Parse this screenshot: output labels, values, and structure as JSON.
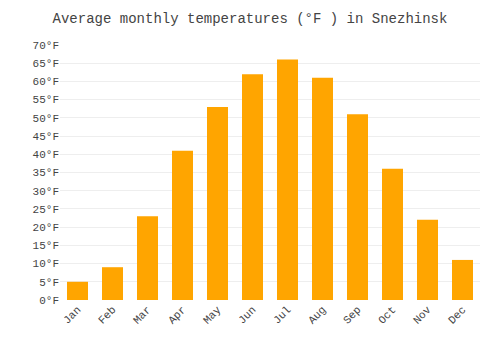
{
  "chart_data": {
    "type": "bar",
    "title": "Average monthly temperatures (°F ) in Snezhinsk",
    "categories": [
      "Jan",
      "Feb",
      "Mar",
      "Apr",
      "May",
      "Jun",
      "Jul",
      "Aug",
      "Sep",
      "Oct",
      "Nov",
      "Dec"
    ],
    "values": [
      5,
      9,
      23,
      41,
      53,
      62,
      66,
      61,
      51,
      36,
      22,
      11
    ],
    "color": "#FFA500",
    "ylim": [
      0,
      70
    ],
    "yticks": [
      {
        "value": 0,
        "label": "0°F"
      },
      {
        "value": 5,
        "label": "5°F"
      },
      {
        "value": 10,
        "label": "10°F"
      },
      {
        "value": 15,
        "label": "15°F"
      },
      {
        "value": 20,
        "label": "20°F"
      },
      {
        "value": 25,
        "label": "25°F"
      },
      {
        "value": 30,
        "label": "30°F"
      },
      {
        "value": 35,
        "label": "35°F"
      },
      {
        "value": 40,
        "label": "40°F"
      },
      {
        "value": 45,
        "label": "45°F"
      },
      {
        "value": 50,
        "label": "50°F"
      },
      {
        "value": 55,
        "label": "55°F"
      },
      {
        "value": 60,
        "label": "60°F"
      },
      {
        "value": 65,
        "label": "65°F"
      },
      {
        "value": 70,
        "label": "70°F"
      }
    ],
    "grid": true
  }
}
